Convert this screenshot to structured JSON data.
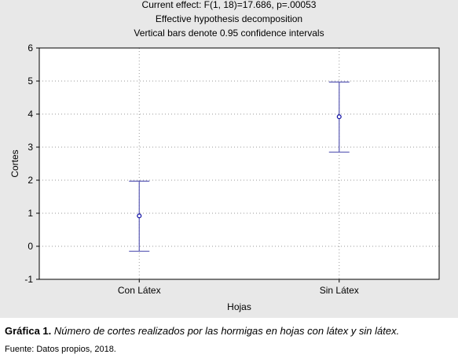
{
  "chart_data": {
    "type": "scatter",
    "title_lines": [
      "Current effect: F(1, 18)=17.686, p=.00053",
      "Effective hypothesis decomposition",
      "Vertical bars denote 0.95 confidence intervals"
    ],
    "xlabel": "Hojas",
    "ylabel": "Cortes",
    "categories": [
      "Con Látex",
      "Sin Látex"
    ],
    "series": [
      {
        "values": [
          0.92,
          3.92
        ],
        "ci_lower": [
          -0.15,
          2.85
        ],
        "ci_upper": [
          1.97,
          4.97
        ]
      }
    ],
    "ylim": [
      -1,
      6
    ],
    "yticks": [
      -1,
      0,
      1,
      2,
      3,
      4,
      5,
      6
    ],
    "grid": true,
    "colors": {
      "marker": "#1a1aa8",
      "errorbar": "#5a5ab4",
      "grid": "#9a9a9a",
      "plot_bg": "#ffffff",
      "figure_bg": "#e8e8e8"
    }
  },
  "caption": {
    "label": "Gráfica 1.",
    "text": "Número de cortes realizados por las hormigas en hojas con látex y sin látex."
  },
  "source": "Fuente: Datos propios, 2018."
}
